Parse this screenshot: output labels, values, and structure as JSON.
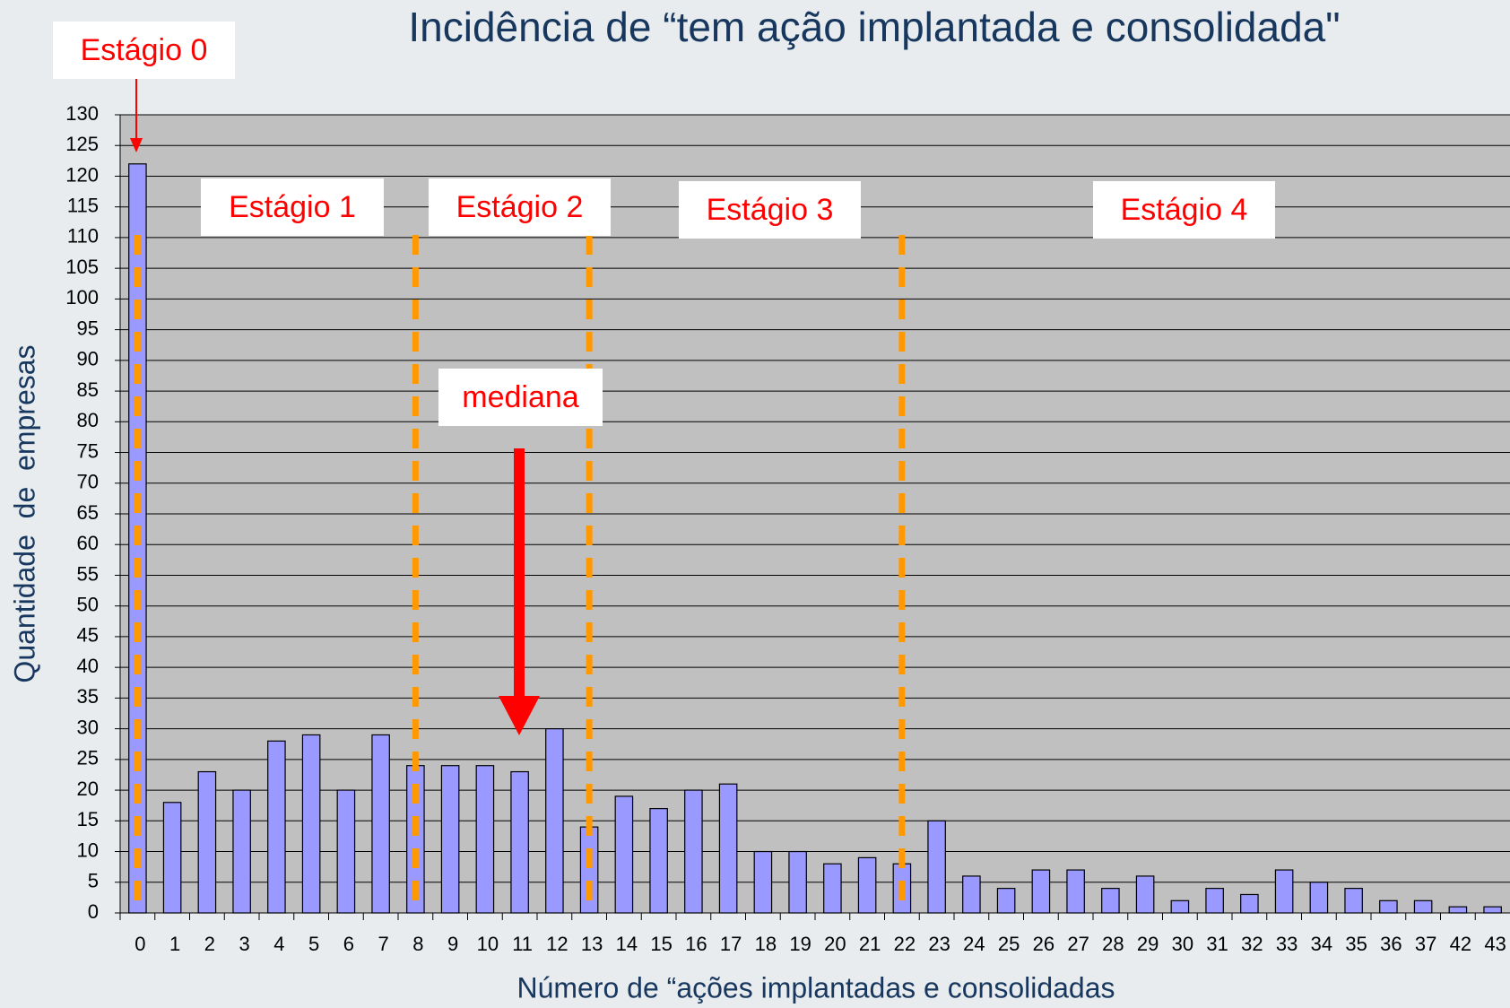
{
  "chart_data": {
    "type": "bar",
    "title": "Incidência de “tem ação implantada e consolidada\"",
    "xlabel": "Número de “ações implantadas e consolidadas",
    "ylabel": "Quantidade  de  empresas",
    "categories": [
      "0",
      "1",
      "2",
      "3",
      "4",
      "5",
      "6",
      "7",
      "8",
      "9",
      "10",
      "11",
      "12",
      "13",
      "14",
      "15",
      "16",
      "17",
      "18",
      "19",
      "20",
      "21",
      "22",
      "23",
      "24",
      "25",
      "26",
      "27",
      "28",
      "29",
      "30",
      "31",
      "32",
      "33",
      "34",
      "35",
      "36",
      "37",
      "42",
      "43"
    ],
    "values": [
      122,
      18,
      23,
      20,
      28,
      29,
      20,
      29,
      24,
      24,
      24,
      23,
      30,
      14,
      19,
      17,
      20,
      21,
      10,
      10,
      8,
      9,
      8,
      15,
      6,
      4,
      7,
      7,
      4,
      6,
      2,
      4,
      3,
      7,
      5,
      4,
      2,
      2,
      1,
      1
    ],
    "color": "#9999ff",
    "ylim": [
      0,
      130
    ],
    "yticks": [
      0,
      5,
      10,
      15,
      20,
      25,
      30,
      35,
      40,
      45,
      50,
      55,
      60,
      65,
      70,
      75,
      80,
      85,
      90,
      95,
      100,
      105,
      110,
      115,
      120,
      125,
      130
    ],
    "grid": true,
    "annotations": [
      "Estágio 0",
      "Estágio 1",
      "Estágio 2",
      "Estágio 3",
      "Estágio 4",
      "mediana"
    ]
  }
}
